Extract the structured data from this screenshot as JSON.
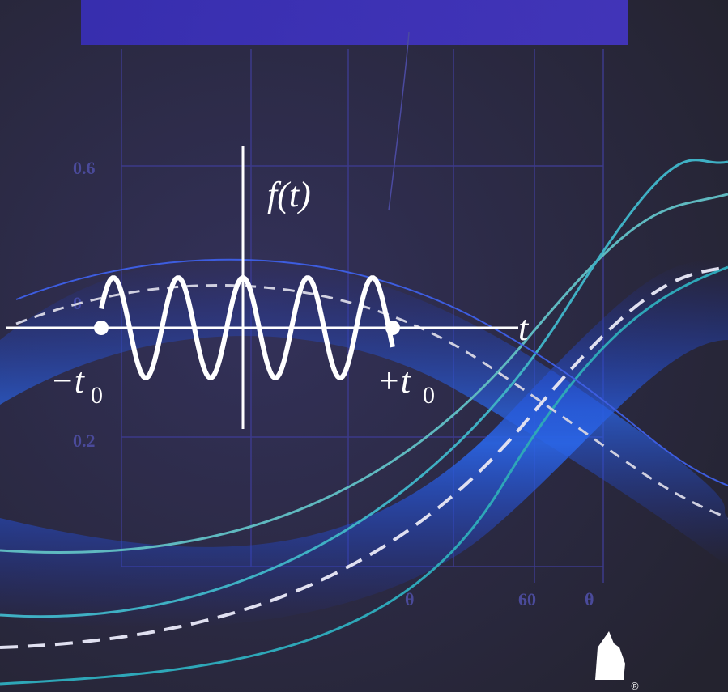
{
  "cover": {
    "function_label": "f(t)",
    "axis_label": "t",
    "left_marker": {
      "text": "−t",
      "subscript": "0"
    },
    "right_marker": {
      "text": "+t",
      "subscript": "0"
    },
    "grid_labels": [
      "0.6",
      "0.2",
      "0",
      "60",
      "θ",
      "θ"
    ],
    "registered": "®"
  }
}
